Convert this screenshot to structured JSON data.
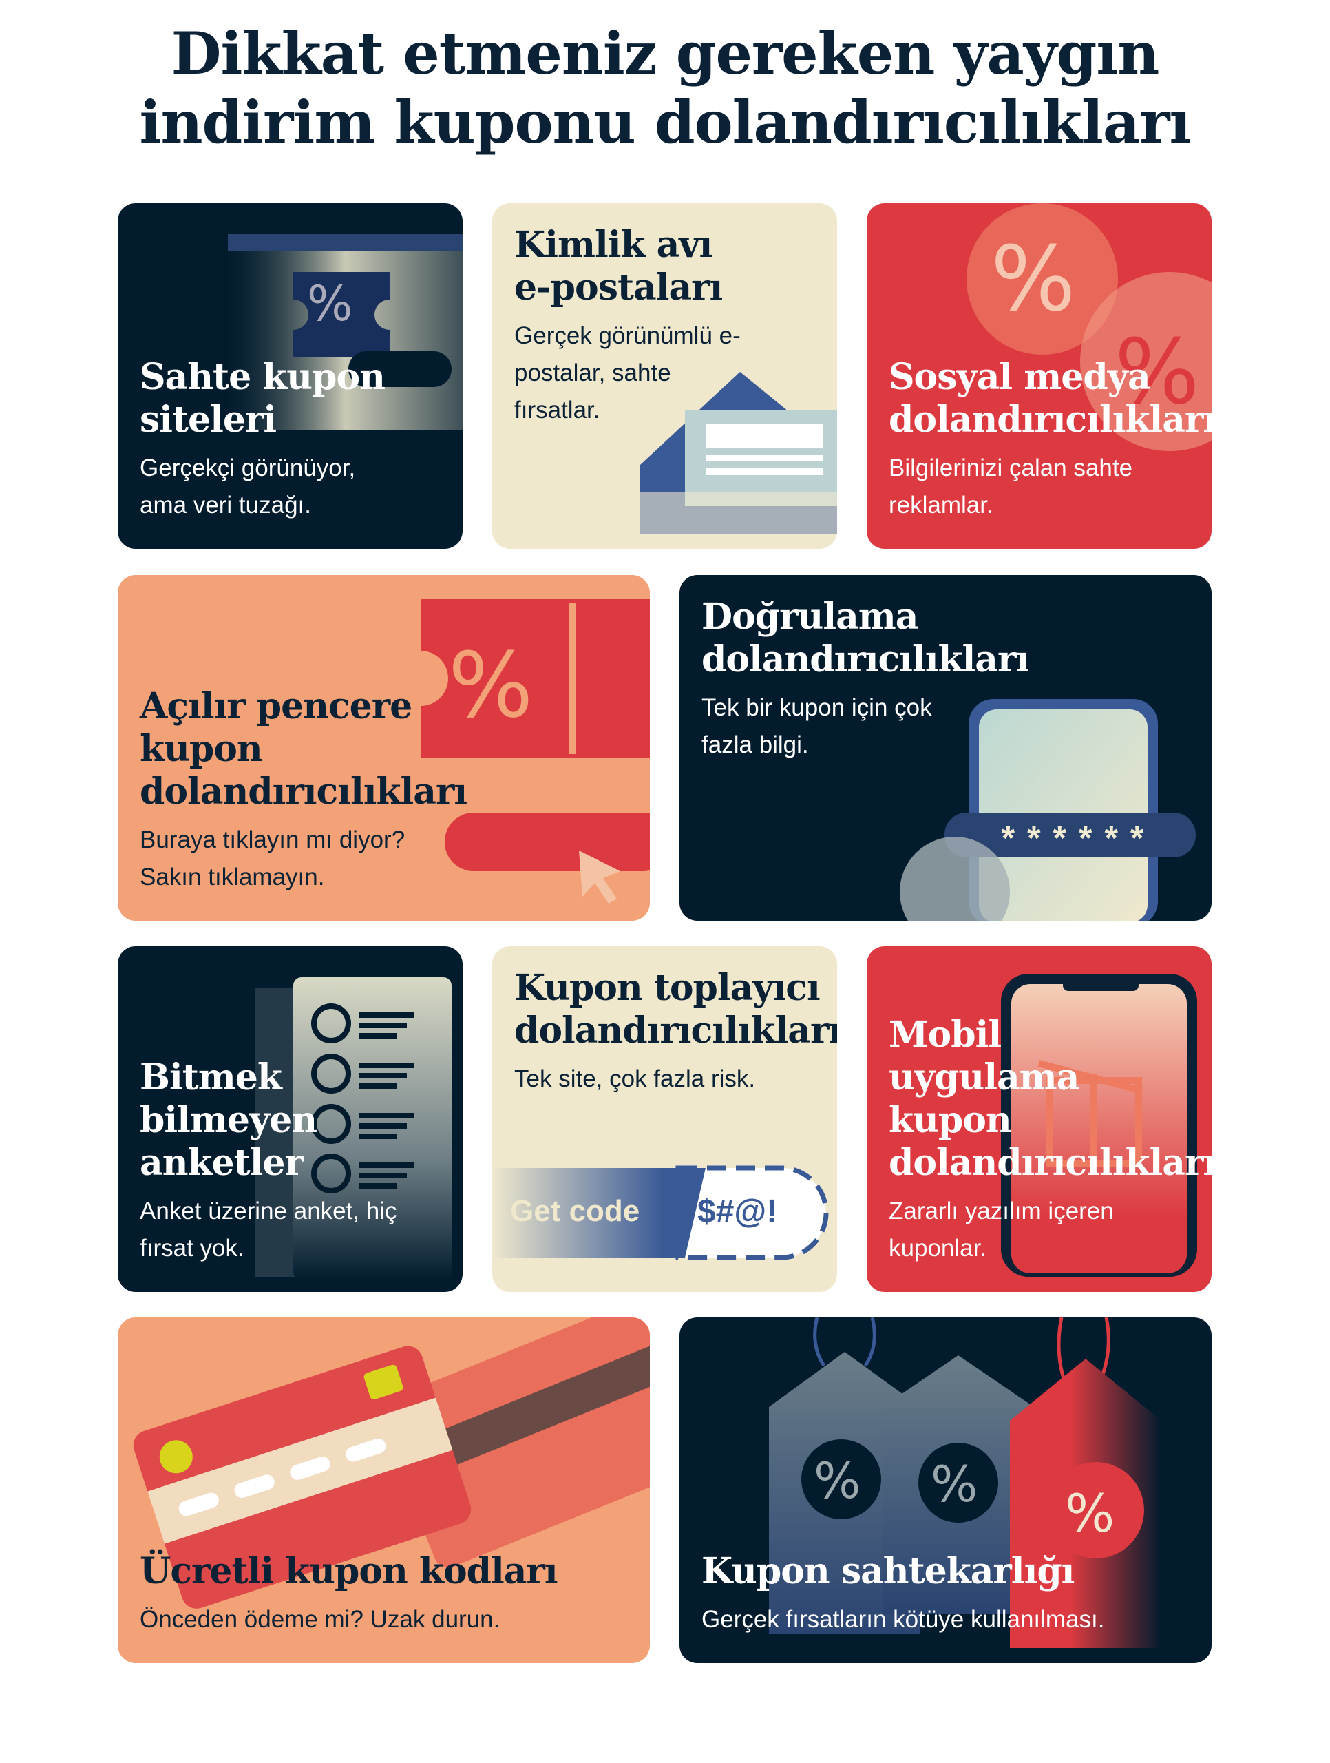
{
  "title_line1": "Dikkat etmeniz gereken yaygın",
  "title_line2": "indirim kuponu dolandırıcılıkları",
  "colors": {
    "navy": "#021c2e",
    "cream": "#efe8cd",
    "red": "#dc3a40",
    "salmon": "#f2a276",
    "blue": "#3a5a97"
  },
  "cards": [
    {
      "title": "Sahte kupon siteleri",
      "desc": "Gerçekçi görünüyor, ama veri tuzağı.",
      "icon": "coupon-ticket-icon"
    },
    {
      "title": "Kimlik avı e-postaları",
      "desc": "Gerçek görünümlü e-postalar, sahte fırsatlar.",
      "icon": "envelope-icon"
    },
    {
      "title": "Sosyal medya dolandırıcılıkları",
      "desc": "Bilgilerinizi çalan sahte reklamlar.",
      "icon": "percent-badge-icon"
    },
    {
      "title": "Açılır pencere kupon dolandırıcılıkları",
      "desc": "Buraya tıklayın mı diyor? Sakın tıklamayın.",
      "icon": "popup-cursor-icon"
    },
    {
      "title": "Doğrulama dolandırıcılıkları",
      "desc": "Tek bir kupon için çok fazla bilgi.",
      "icon": "phone-password-icon",
      "password": "******"
    },
    {
      "title": "Bitmek bilmeyen anketler",
      "desc": "Anket üzerine anket, hiç fırsat yok.",
      "icon": "survey-checklist-icon"
    },
    {
      "title": "Kupon toplayıcı dolandırıcılıkları",
      "desc": "Tek site, çok fazla risk.",
      "icon": "get-code-icon",
      "button": "Get code",
      "code": "$#@!"
    },
    {
      "title": "Mobil uygulama kupon dolandırıcılıkları",
      "desc": "Zararlı yazılım içeren kuponlar.",
      "icon": "phone-gift-icon"
    },
    {
      "title": "Ücretli kupon kodları",
      "desc": "Önceden ödeme mi? Uzak durun.",
      "icon": "credit-card-icon"
    },
    {
      "title": "Kupon sahtekarlığı",
      "desc": "Gerçek fırsatların kötüye kullanılması.",
      "icon": "price-tag-icon",
      "tag_symbol": "%"
    }
  ]
}
